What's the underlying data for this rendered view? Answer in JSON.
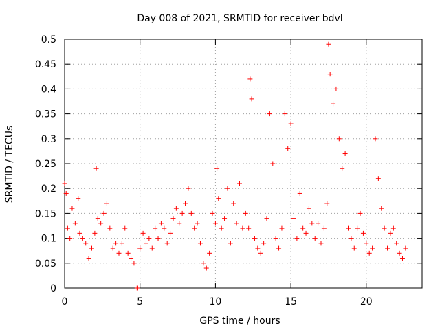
{
  "chart_data": {
    "type": "scatter",
    "title": "Day 008 of 2021, SRMTID for receiver bdvl",
    "xlabel": "GPS time / hours",
    "ylabel": "SRMTID / TECUs",
    "xlim": [
      0,
      23.7
    ],
    "ylim": [
      0,
      0.5
    ],
    "x_ticks": [
      0,
      5,
      10,
      15,
      20
    ],
    "y_ticks": [
      0,
      0.05,
      0.1,
      0.15,
      0.2,
      0.25,
      0.3,
      0.35,
      0.4,
      0.45,
      0.5
    ],
    "x_tick_labels": [
      "0",
      "5",
      "10",
      "15",
      "20"
    ],
    "y_tick_labels": [
      "0",
      "0.05",
      "0.1",
      "0.15",
      "0.2",
      "0.25",
      "0.3",
      "0.35",
      "0.4",
      "0.45",
      "0.5"
    ],
    "grid": true,
    "marker": "+",
    "color": "#ff0000",
    "x_range_of_data": [
      0,
      22.7
    ],
    "series": [
      {
        "name": "SRMTID",
        "x": [
          0.0,
          0.1,
          0.2,
          0.35,
          0.5,
          0.7,
          0.9,
          1.0,
          1.2,
          1.4,
          1.6,
          1.8,
          2.0,
          2.1,
          2.2,
          2.4,
          2.6,
          2.8,
          3.0,
          3.2,
          3.4,
          3.6,
          3.8,
          4.0,
          4.2,
          4.4,
          4.6,
          4.8,
          4.85,
          5.0,
          5.2,
          5.4,
          5.6,
          5.8,
          6.0,
          6.2,
          6.4,
          6.6,
          6.8,
          7.0,
          7.2,
          7.4,
          7.6,
          7.8,
          8.0,
          8.2,
          8.4,
          8.6,
          8.8,
          9.0,
          9.2,
          9.4,
          9.6,
          9.8,
          10.0,
          10.1,
          10.2,
          10.4,
          10.6,
          10.8,
          11.0,
          11.2,
          11.4,
          11.6,
          11.8,
          12.0,
          12.2,
          12.3,
          12.4,
          12.6,
          12.8,
          13.0,
          13.2,
          13.4,
          13.6,
          13.8,
          14.0,
          14.2,
          14.4,
          14.6,
          14.8,
          15.0,
          15.2,
          15.4,
          15.6,
          15.8,
          16.0,
          16.2,
          16.4,
          16.6,
          16.8,
          17.0,
          17.2,
          17.4,
          17.5,
          17.6,
          17.8,
          18.0,
          18.2,
          18.4,
          18.6,
          18.8,
          19.0,
          19.2,
          19.4,
          19.6,
          19.8,
          20.0,
          20.2,
          20.4,
          20.6,
          20.8,
          21.0,
          21.2,
          21.4,
          21.6,
          21.8,
          22.0,
          22.2,
          22.4,
          22.6
        ],
        "values": [
          0.21,
          0.19,
          0.12,
          0.1,
          0.16,
          0.13,
          0.18,
          0.11,
          0.1,
          0.09,
          0.06,
          0.08,
          0.11,
          0.24,
          0.14,
          0.13,
          0.15,
          0.17,
          0.12,
          0.08,
          0.09,
          0.07,
          0.09,
          0.12,
          0.07,
          0.06,
          0.05,
          0.0,
          0.0,
          0.08,
          0.11,
          0.09,
          0.1,
          0.08,
          0.12,
          0.1,
          0.13,
          0.12,
          0.09,
          0.11,
          0.14,
          0.16,
          0.13,
          0.15,
          0.17,
          0.2,
          0.15,
          0.12,
          0.13,
          0.09,
          0.05,
          0.04,
          0.07,
          0.15,
          0.13,
          0.24,
          0.18,
          0.12,
          0.14,
          0.2,
          0.09,
          0.17,
          0.13,
          0.21,
          0.12,
          0.15,
          0.12,
          0.42,
          0.38,
          0.1,
          0.08,
          0.07,
          0.09,
          0.14,
          0.35,
          0.25,
          0.1,
          0.08,
          0.12,
          0.35,
          0.28,
          0.33,
          0.14,
          0.1,
          0.19,
          0.12,
          0.11,
          0.16,
          0.13,
          0.1,
          0.13,
          0.09,
          0.12,
          0.17,
          0.49,
          0.43,
          0.37,
          0.4,
          0.3,
          0.24,
          0.27,
          0.12,
          0.1,
          0.08,
          0.12,
          0.15,
          0.11,
          0.09,
          0.07,
          0.08,
          0.3,
          0.22,
          0.16,
          0.12,
          0.08,
          0.11,
          0.12,
          0.09,
          0.07,
          0.06,
          0.08
        ]
      }
    ]
  }
}
